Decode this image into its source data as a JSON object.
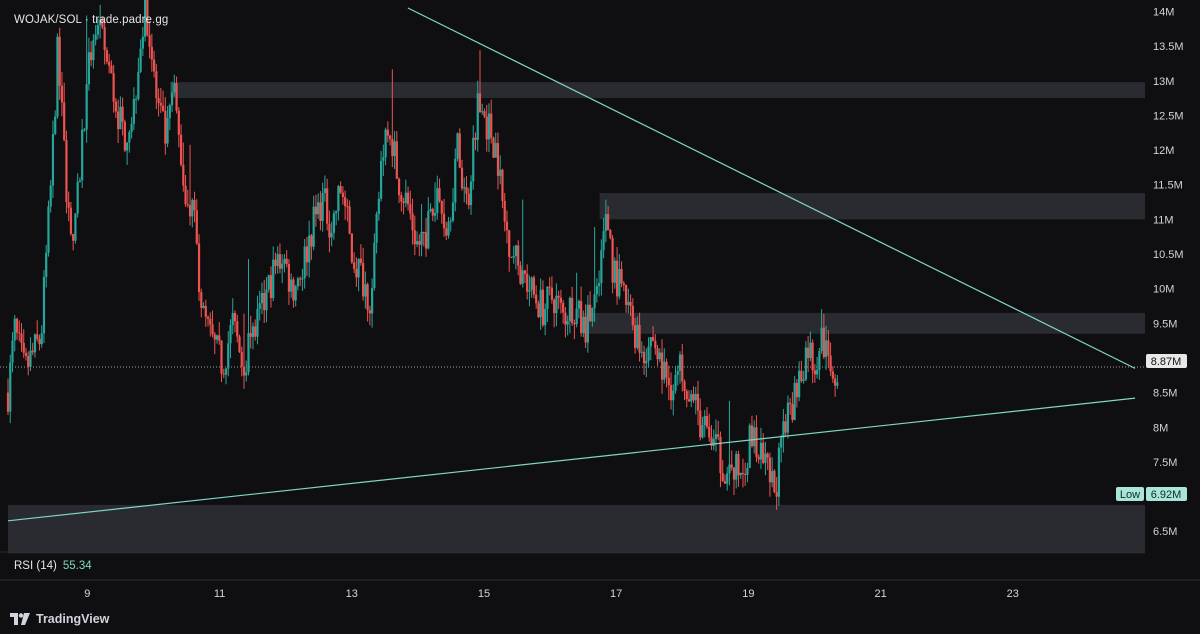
{
  "header": {
    "symbol": "WOJAK/SOL",
    "separator": "·",
    "source": "trade.padre.gg"
  },
  "rsi": {
    "label": "RSI (14)",
    "value": "55.34"
  },
  "branding": {
    "name": "TradingView"
  },
  "price_tag": {
    "label": "",
    "value": "8.87M"
  },
  "low_tag": {
    "label": "Low",
    "value": "6.92M"
  },
  "colors": {
    "up": "#26a69a",
    "down": "#ef5350",
    "trendline": "#7fd6c4",
    "zone": "#2a2b30",
    "background": "#0f0f12",
    "axis_text": "#d1d4dc"
  },
  "chart_data": {
    "type": "candlestick",
    "y_unit": "M",
    "ylim": [
      6.2,
      14.05
    ],
    "y_ticks": [
      {
        "value": 14,
        "label": "14M"
      },
      {
        "value": 13.5,
        "label": "13.5M"
      },
      {
        "value": 13,
        "label": "13M"
      },
      {
        "value": 12.5,
        "label": "12.5M"
      },
      {
        "value": 12,
        "label": "12M"
      },
      {
        "value": 11.5,
        "label": "11.5M"
      },
      {
        "value": 11,
        "label": "11M"
      },
      {
        "value": 10.5,
        "label": "10.5M"
      },
      {
        "value": 10,
        "label": "10M"
      },
      {
        "value": 9.5,
        "label": "9.5M"
      },
      {
        "value": 9,
        "label": "9M"
      },
      {
        "value": 8.5,
        "label": "8.5M"
      },
      {
        "value": 8,
        "label": "8M"
      },
      {
        "value": 7.5,
        "label": "7.5M"
      },
      {
        "value": 7,
        "label": "7M"
      },
      {
        "value": 6.5,
        "label": "6.5M"
      }
    ],
    "xlim": [
      7.8,
      25.0
    ],
    "x_ticks": [
      {
        "value": 9,
        "label": "9"
      },
      {
        "value": 11,
        "label": "11"
      },
      {
        "value": 13,
        "label": "13"
      },
      {
        "value": 15,
        "label": "15"
      },
      {
        "value": 17,
        "label": "17"
      },
      {
        "value": 19,
        "label": "19"
      },
      {
        "value": 21,
        "label": "21"
      },
      {
        "value": 23,
        "label": "23"
      }
    ],
    "close_path": [
      [
        7.8,
        8.5
      ],
      [
        7.9,
        9.4
      ],
      [
        8.05,
        8.8
      ],
      [
        8.3,
        9.3
      ],
      [
        8.45,
        11.5
      ],
      [
        8.55,
        13.4
      ],
      [
        8.7,
        11.3
      ],
      [
        8.8,
        10.6
      ],
      [
        8.95,
        12.5
      ],
      [
        9.1,
        13.8
      ],
      [
        9.25,
        13.5
      ],
      [
        9.4,
        12.8
      ],
      [
        9.55,
        12.2
      ],
      [
        9.7,
        12.6
      ],
      [
        9.8,
        13.6
      ],
      [
        9.9,
        14.0
      ],
      [
        10.05,
        12.7
      ],
      [
        10.2,
        12.1
      ],
      [
        10.3,
        12.9
      ],
      [
        10.45,
        11.6
      ],
      [
        10.6,
        11.1
      ],
      [
        10.75,
        9.6
      ],
      [
        10.9,
        9.2
      ],
      [
        11.05,
        8.9
      ],
      [
        11.2,
        9.5
      ],
      [
        11.35,
        8.9
      ],
      [
        11.5,
        9.3
      ],
      [
        11.65,
        9.7
      ],
      [
        11.8,
        10.2
      ],
      [
        11.95,
        10.5
      ],
      [
        12.1,
        10.0
      ],
      [
        12.25,
        10.3
      ],
      [
        12.4,
        10.9
      ],
      [
        12.55,
        11.3
      ],
      [
        12.7,
        10.9
      ],
      [
        12.85,
        11.5
      ],
      [
        13.0,
        10.5
      ],
      [
        13.15,
        10.2
      ],
      [
        13.3,
        9.8
      ],
      [
        13.45,
        11.9
      ],
      [
        13.55,
        12.5
      ],
      [
        13.7,
        11.6
      ],
      [
        13.85,
        11.2
      ],
      [
        14.0,
        10.6
      ],
      [
        14.15,
        10.9
      ],
      [
        14.3,
        11.3
      ],
      [
        14.45,
        10.9
      ],
      [
        14.6,
        12.0
      ],
      [
        14.75,
        11.2
      ],
      [
        14.9,
        12.7
      ],
      [
        15.05,
        12.4
      ],
      [
        15.2,
        12.0
      ],
      [
        15.3,
        11.0
      ],
      [
        15.45,
        10.5
      ],
      [
        15.6,
        10.2
      ],
      [
        15.75,
        9.9
      ],
      [
        15.9,
        9.7
      ],
      [
        16.05,
        9.9
      ],
      [
        16.2,
        9.6
      ],
      [
        16.35,
        9.8
      ],
      [
        16.5,
        9.4
      ],
      [
        16.6,
        9.6
      ],
      [
        16.75,
        10.0
      ],
      [
        16.85,
        11.2
      ],
      [
        16.95,
        10.3
      ],
      [
        17.1,
        9.9
      ],
      [
        17.25,
        9.5
      ],
      [
        17.4,
        9.1
      ],
      [
        17.55,
        9.3
      ],
      [
        17.7,
        8.8
      ],
      [
        17.85,
        8.6
      ],
      [
        18.0,
        8.9
      ],
      [
        18.15,
        8.4
      ],
      [
        18.3,
        8.0
      ],
      [
        18.45,
        7.8
      ],
      [
        18.6,
        7.5
      ],
      [
        18.75,
        7.3
      ],
      [
        18.9,
        7.4
      ],
      [
        19.05,
        7.9
      ],
      [
        19.15,
        7.6
      ],
      [
        19.3,
        7.3
      ],
      [
        19.4,
        7.1
      ],
      [
        19.5,
        7.7
      ],
      [
        19.65,
        8.3
      ],
      [
        19.8,
        8.8
      ],
      [
        19.9,
        9.2
      ],
      [
        20.0,
        8.9
      ],
      [
        20.1,
        9.3
      ],
      [
        20.25,
        8.8
      ],
      [
        20.35,
        8.85
      ]
    ],
    "zones": [
      {
        "x0": 10.25,
        "x1": 25.0,
        "y0": 12.75,
        "y1": 12.98
      },
      {
        "x0": 16.75,
        "x1": 25.0,
        "y0": 11.0,
        "y1": 11.38
      },
      {
        "x0": 16.5,
        "x1": 25.0,
        "y0": 9.35,
        "y1": 9.65
      },
      {
        "x0": 7.8,
        "x1": 25.0,
        "y0": 6.18,
        "y1": 6.88
      }
    ],
    "trendlines": [
      {
        "name": "resistance",
        "x0": 13.85,
        "y0": 14.05,
        "x1": 24.85,
        "y1": 8.85
      },
      {
        "name": "support",
        "x0": 7.8,
        "y0": 6.65,
        "x1": 24.85,
        "y1": 8.42
      }
    ],
    "last_price": 8.87,
    "session_low": 6.92
  }
}
